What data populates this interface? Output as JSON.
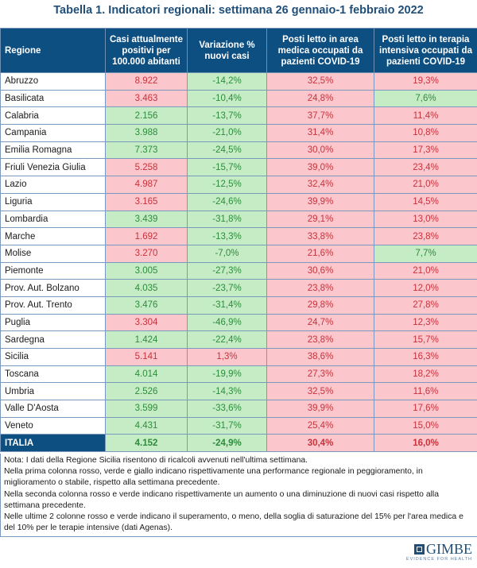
{
  "title": "Tabella 1. Indicatori regionali: settimana 26 gennaio-1 febbraio 2022",
  "headers": [
    "Regione",
    "Casi attualmente positivi per 100.000 abitanti",
    "Variazione % nuovi casi",
    "Posti letto in area medica occupati da pazienti COVID-19",
    "Posti letto in terapia intensiva occupati da pazienti COVID-19"
  ],
  "colors": {
    "red_bg": "#fcc7cc",
    "red_text": "#c8323c",
    "green_bg": "#c6ecc6",
    "green_text": "#2e8b3c",
    "header_bg": "#0e4f82"
  },
  "rows": [
    {
      "regione": "Abruzzo",
      "casi": "8.922",
      "casi_status": "red",
      "var": "-14,2%",
      "var_status": "green",
      "medica": "32,5%",
      "medica_status": "red",
      "ti": "19,3%",
      "ti_status": "red"
    },
    {
      "regione": "Basilicata",
      "casi": "3.463",
      "casi_status": "red",
      "var": "-10,4%",
      "var_status": "green",
      "medica": "24,8%",
      "medica_status": "red",
      "ti": "7,6%",
      "ti_status": "green"
    },
    {
      "regione": "Calabria",
      "casi": "2.156",
      "casi_status": "green",
      "var": "-13,7%",
      "var_status": "green",
      "medica": "37,7%",
      "medica_status": "red",
      "ti": "11,4%",
      "ti_status": "red"
    },
    {
      "regione": "Campania",
      "casi": "3.988",
      "casi_status": "green",
      "var": "-21,0%",
      "var_status": "green",
      "medica": "31,4%",
      "medica_status": "red",
      "ti": "10,8%",
      "ti_status": "red"
    },
    {
      "regione": "Emilia Romagna",
      "casi": "7.373",
      "casi_status": "green",
      "var": "-24,5%",
      "var_status": "green",
      "medica": "30,0%",
      "medica_status": "red",
      "ti": "17,3%",
      "ti_status": "red"
    },
    {
      "regione": "Friuli Venezia Giulia",
      "casi": "5.258",
      "casi_status": "red",
      "var": "-15,7%",
      "var_status": "green",
      "medica": "39,0%",
      "medica_status": "red",
      "ti": "23,4%",
      "ti_status": "red"
    },
    {
      "regione": "Lazio",
      "casi": "4.987",
      "casi_status": "red",
      "var": "-12,5%",
      "var_status": "green",
      "medica": "32,4%",
      "medica_status": "red",
      "ti": "21,0%",
      "ti_status": "red"
    },
    {
      "regione": "Liguria",
      "casi": "3.165",
      "casi_status": "red",
      "var": "-24,6%",
      "var_status": "green",
      "medica": "39,9%",
      "medica_status": "red",
      "ti": "14,5%",
      "ti_status": "red"
    },
    {
      "regione": "Lombardia",
      "casi": "3.439",
      "casi_status": "green",
      "var": "-31,8%",
      "var_status": "green",
      "medica": "29,1%",
      "medica_status": "red",
      "ti": "13,0%",
      "ti_status": "red"
    },
    {
      "regione": "Marche",
      "casi": "1.692",
      "casi_status": "red",
      "var": "-13,3%",
      "var_status": "green",
      "medica": "33,8%",
      "medica_status": "red",
      "ti": "23,8%",
      "ti_status": "red"
    },
    {
      "regione": "Molise",
      "casi": "3.270",
      "casi_status": "red",
      "var": "-7,0%",
      "var_status": "green",
      "medica": "21,6%",
      "medica_status": "red",
      "ti": "7,7%",
      "ti_status": "green"
    },
    {
      "regione": "Piemonte",
      "casi": "3.005",
      "casi_status": "green",
      "var": "-27,3%",
      "var_status": "green",
      "medica": "30,6%",
      "medica_status": "red",
      "ti": "21,0%",
      "ti_status": "red"
    },
    {
      "regione": "Prov. Aut. Bolzano",
      "casi": "4.035",
      "casi_status": "green",
      "var": "-23,7%",
      "var_status": "green",
      "medica": "23,8%",
      "medica_status": "red",
      "ti": "12,0%",
      "ti_status": "red"
    },
    {
      "regione": "Prov. Aut. Trento",
      "casi": "3.476",
      "casi_status": "green",
      "var": "-31,4%",
      "var_status": "green",
      "medica": "29,8%",
      "medica_status": "red",
      "ti": "27,8%",
      "ti_status": "red"
    },
    {
      "regione": "Puglia",
      "casi": "3.304",
      "casi_status": "red",
      "var": "-46,9%",
      "var_status": "green",
      "medica": "24,7%",
      "medica_status": "red",
      "ti": "12,3%",
      "ti_status": "red"
    },
    {
      "regione": "Sardegna",
      "casi": "1.424",
      "casi_status": "green",
      "var": "-22,4%",
      "var_status": "green",
      "medica": "23,8%",
      "medica_status": "red",
      "ti": "15,7%",
      "ti_status": "red"
    },
    {
      "regione": "Sicilia",
      "casi": "5.141",
      "casi_status": "red",
      "var": "1,3%",
      "var_status": "red",
      "medica": "38,6%",
      "medica_status": "red",
      "ti": "16,3%",
      "ti_status": "red"
    },
    {
      "regione": "Toscana",
      "casi": "4.014",
      "casi_status": "green",
      "var": "-19,9%",
      "var_status": "green",
      "medica": "27,3%",
      "medica_status": "red",
      "ti": "18,2%",
      "ti_status": "red"
    },
    {
      "regione": "Umbria",
      "casi": "2.526",
      "casi_status": "green",
      "var": "-14,3%",
      "var_status": "green",
      "medica": "32,5%",
      "medica_status": "red",
      "ti": "11,6%",
      "ti_status": "red"
    },
    {
      "regione": "Valle D'Aosta",
      "casi": "3.599",
      "casi_status": "green",
      "var": "-33,6%",
      "var_status": "green",
      "medica": "39,9%",
      "medica_status": "red",
      "ti": "17,6%",
      "ti_status": "red"
    },
    {
      "regione": "Veneto",
      "casi": "4.431",
      "casi_status": "green",
      "var": "-31,7%",
      "var_status": "green",
      "medica": "25,4%",
      "medica_status": "red",
      "ti": "15,0%",
      "ti_status": "red"
    }
  ],
  "total": {
    "regione": "ITALIA",
    "casi": "4.152",
    "casi_status": "green",
    "var": "-24,9%",
    "var_status": "green",
    "medica": "30,4%",
    "medica_status": "red",
    "ti": "16,0%",
    "ti_status": "red"
  },
  "notes": [
    "Nota: I dati della Regione Sicilia risentono di ricalcoli avvenuti nell'ultima settimana.",
    "Nella prima colonna rosso, verde e giallo indicano rispettivamente una performance regionale in peggioramento, in miglioramento o stabile, rispetto alla settimana precedente.",
    "Nella seconda colonna rosso e verde indicano rispettivamente un aumento o una diminuzione di nuovi casi rispetto alla settimana precedente.",
    "Nelle ultime 2 colonne rosso e verde indicano il superamento, o meno, della soglia di saturazione del 15% per l'area medica e del 10% per le terapie intensive (dati Agenas)."
  ],
  "logo": {
    "name": "GIMBE",
    "tagline": "EVIDENCE FOR HEALTH",
    "icon": "gimbe-logo-icon"
  }
}
